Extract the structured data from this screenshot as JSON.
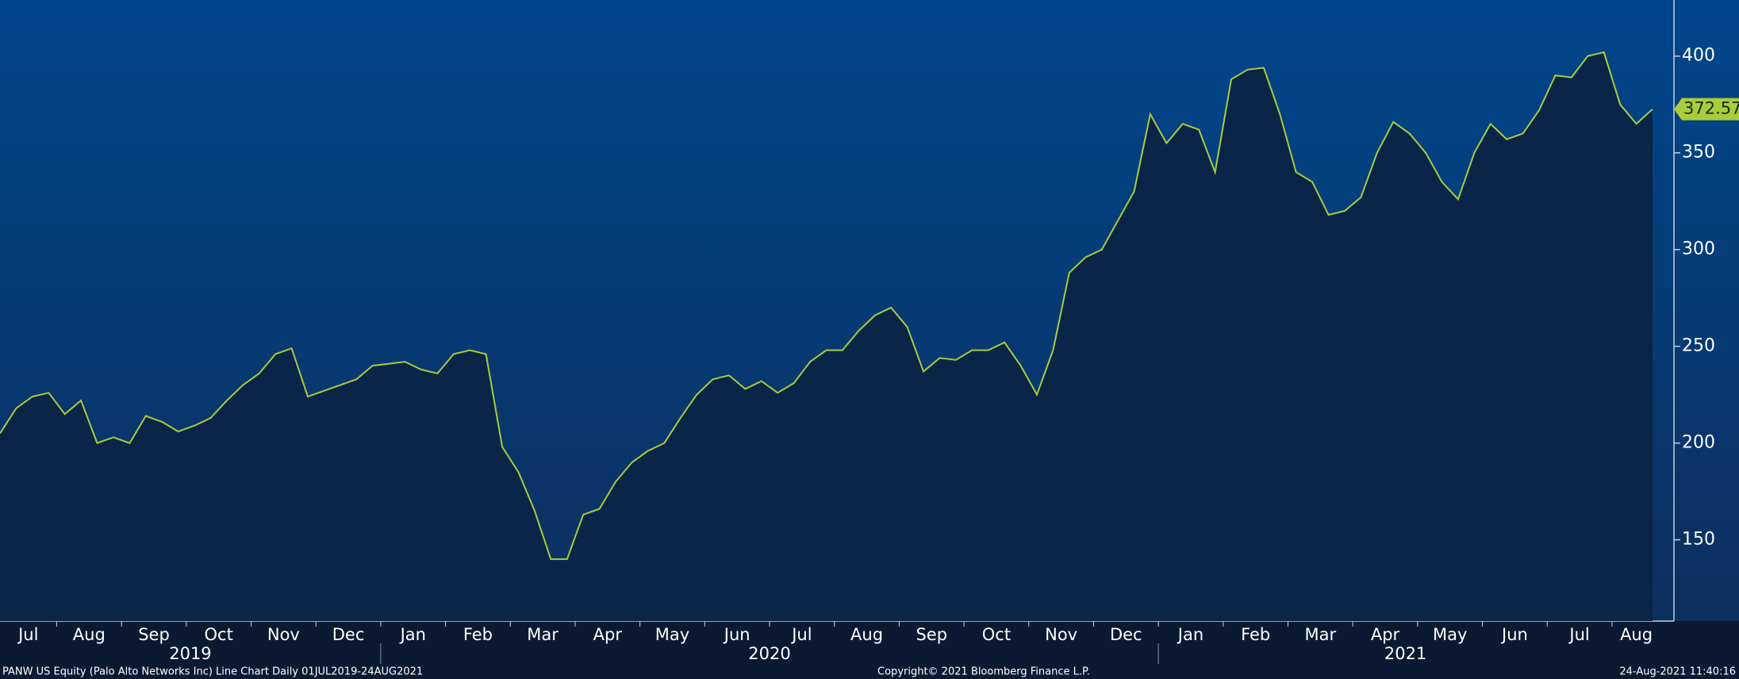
{
  "chart_data": {
    "type": "line",
    "title": "PANW US Equity (Palo Alto Networks Inc) Line Chart  Daily 01JUL2019-24AUG2021",
    "copyright": "Copyright© 2021 Bloomberg Finance L.P.",
    "timestamp": "24-Aug-2021 11:40:16",
    "year_labels": [
      "2019",
      "2020",
      "2021"
    ],
    "categories": [
      "Jul",
      null,
      null,
      null,
      "Aug",
      null,
      null,
      null,
      "Sep",
      null,
      null,
      null,
      "Oct",
      null,
      null,
      null,
      "Nov",
      null,
      null,
      null,
      "Dec",
      null,
      null,
      null,
      "Jan",
      null,
      null,
      null,
      "Feb",
      null,
      null,
      null,
      "Mar",
      null,
      null,
      null,
      "Apr",
      null,
      null,
      null,
      "May",
      null,
      null,
      null,
      "Jun",
      null,
      null,
      null,
      "Jul",
      null,
      null,
      null,
      "Aug",
      null,
      null,
      null,
      "Sep",
      null,
      null,
      null,
      "Oct",
      null,
      null,
      null,
      "Nov",
      null,
      null,
      null,
      "Dec",
      null,
      null,
      null,
      "Jan",
      null,
      null,
      null,
      "Feb",
      null,
      null,
      null,
      "Mar",
      null,
      null,
      null,
      "Apr",
      null,
      null,
      null,
      "May",
      null,
      null,
      null,
      "Jun",
      null,
      null,
      null,
      "Jul",
      null,
      null,
      null,
      "Aug",
      null,
      null
    ],
    "values": [
      205,
      218,
      224,
      226,
      215,
      222,
      200,
      203,
      200,
      214,
      211,
      206,
      209,
      213,
      222,
      230,
      236,
      246,
      249,
      224,
      227,
      230,
      233,
      240,
      241,
      242,
      238,
      236,
      246,
      248,
      246,
      198,
      185,
      165,
      140,
      140,
      163,
      166,
      180,
      190,
      196,
      200,
      213,
      225,
      233,
      235,
      228,
      232,
      226,
      231,
      242,
      248,
      248,
      258,
      266,
      270,
      260,
      237,
      244,
      243,
      248,
      248,
      252,
      240,
      225,
      248,
      288,
      296,
      300,
      315,
      330,
      370,
      355,
      365,
      362,
      340,
      388,
      393,
      394,
      370,
      340,
      335,
      318,
      320,
      327,
      350,
      366,
      360,
      350,
      335,
      326,
      350,
      365,
      357,
      360,
      372,
      390,
      389,
      400,
      402,
      375,
      365,
      372.57
    ],
    "color": "#a8cc3c",
    "ylim": [
      108,
      429
    ],
    "yticks": [
      150,
      200,
      250,
      300,
      350,
      400
    ],
    "grid": false
  }
}
